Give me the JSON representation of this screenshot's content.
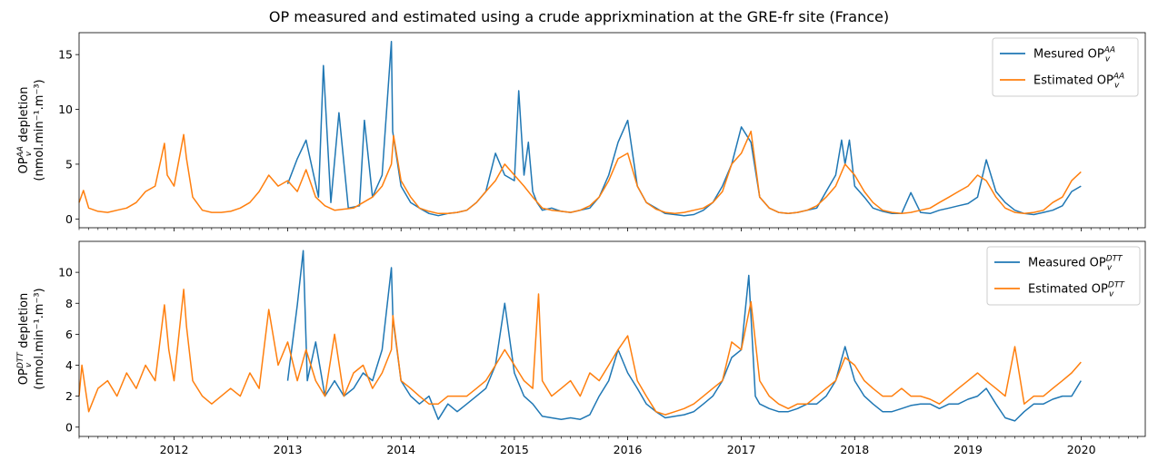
{
  "figure_title": "OP measured and estimated using a crude apprixmination at the GRE-fr site (France)",
  "colors": {
    "measured": "#1f77b4",
    "estimated": "#ff7f0e"
  },
  "chart_data": [
    {
      "type": "line",
      "ylabel_main": "OP",
      "ylabel_sup": "AA",
      "ylabel_sub": "v",
      "ylabel_rest": " depletion",
      "ylabel_unit": "(nmol.min⁻¹.m⁻³)",
      "xlim": [
        "2011-03-01",
        "2020-07-25"
      ],
      "ylim": [
        -0.8,
        17
      ],
      "yticks": [
        0,
        5,
        10,
        15
      ],
      "xticks": [
        "2012",
        "2013",
        "2014",
        "2015",
        "2016",
        "2017",
        "2018",
        "2019",
        "2020"
      ],
      "legend_position": "top-right",
      "series": [
        {
          "name": "Mesured OP",
          "name_sup": "AA",
          "name_sub": "v",
          "color": "#1f77b4",
          "x": [
            "2013-01-01",
            "2013-02-01",
            "2013-03-01",
            "2013-04-10",
            "2013-04-26",
            "2013-05-20",
            "2013-06-15",
            "2013-07-15",
            "2013-08-20",
            "2013-09-05",
            "2013-10-01",
            "2013-11-01",
            "2013-12-01",
            "2013-12-05",
            "2014-01-01",
            "2014-02-01",
            "2014-03-01",
            "2014-04-01",
            "2014-05-01",
            "2014-06-01",
            "2014-07-01",
            "2014-08-01",
            "2014-09-01",
            "2014-10-01",
            "2014-11-01",
            "2014-12-01",
            "2015-01-01",
            "2015-01-15",
            "2015-02-01",
            "2015-02-15",
            "2015-03-01",
            "2015-03-15",
            "2015-04-01",
            "2015-05-01",
            "2015-06-01",
            "2015-07-01",
            "2015-08-01",
            "2015-09-01",
            "2015-10-01",
            "2015-11-01",
            "2015-12-01",
            "2016-01-01",
            "2016-02-01",
            "2016-03-01",
            "2016-04-01",
            "2016-05-01",
            "2016-06-01",
            "2016-07-01",
            "2016-08-01",
            "2016-09-01",
            "2016-10-01",
            "2016-11-01",
            "2016-12-01",
            "2017-01-01",
            "2017-02-01",
            "2017-03-01",
            "2017-04-01",
            "2017-05-01",
            "2017-06-01",
            "2017-07-01",
            "2017-08-01",
            "2017-09-01",
            "2017-10-01",
            "2017-11-01",
            "2017-11-20",
            "2017-12-01",
            "2017-12-15",
            "2018-01-01",
            "2018-02-01",
            "2018-03-01",
            "2018-04-01",
            "2018-05-01",
            "2018-06-01",
            "2018-07-01",
            "2018-08-01",
            "2018-09-01",
            "2018-10-01",
            "2018-11-01",
            "2018-12-01",
            "2019-01-01",
            "2019-02-01",
            "2019-03-01",
            "2019-04-01",
            "2019-05-01",
            "2019-06-01",
            "2019-07-01",
            "2019-08-01",
            "2019-09-01",
            "2019-10-01",
            "2019-11-01",
            "2019-12-01",
            "2019-12-31"
          ],
          "y": [
            3.2,
            5.5,
            7.2,
            2.0,
            14.0,
            1.5,
            9.7,
            1.0,
            1.2,
            9.0,
            2.0,
            4.0,
            16.2,
            8.0,
            3.0,
            1.5,
            1.0,
            0.5,
            0.3,
            0.5,
            0.6,
            0.8,
            1.5,
            2.5,
            6.0,
            4.0,
            3.5,
            11.7,
            4.0,
            7.0,
            2.5,
            1.5,
            0.8,
            1.0,
            0.7,
            0.6,
            0.8,
            1.0,
            2.0,
            4.0,
            7.0,
            9.0,
            3.0,
            1.5,
            1.0,
            0.5,
            0.4,
            0.3,
            0.4,
            0.8,
            1.5,
            3.0,
            5.0,
            8.4,
            7.0,
            2.0,
            1.0,
            0.6,
            0.5,
            0.6,
            0.8,
            1.0,
            2.5,
            4.0,
            7.2,
            5.0,
            7.2,
            3.0,
            2.0,
            1.0,
            0.7,
            0.5,
            0.5,
            2.4,
            0.6,
            0.5,
            0.8,
            1.0,
            1.2,
            1.4,
            2.0,
            5.4,
            2.5,
            1.5,
            0.8,
            0.5,
            0.4,
            0.6,
            0.8,
            1.2,
            2.5,
            3.0
          ]
        },
        {
          "name": "Estimated OP",
          "name_sup": "AA",
          "name_sub": "v",
          "color": "#ff7f0e",
          "x": [
            "2011-03-01",
            "2011-03-15",
            "2011-04-01",
            "2011-05-01",
            "2011-06-01",
            "2011-07-01",
            "2011-08-01",
            "2011-09-01",
            "2011-10-01",
            "2011-11-01",
            "2011-12-01",
            "2011-12-10",
            "2012-01-01",
            "2012-02-01",
            "2012-02-10",
            "2012-03-01",
            "2012-04-01",
            "2012-05-01",
            "2012-06-01",
            "2012-07-01",
            "2012-08-01",
            "2012-09-01",
            "2012-10-01",
            "2012-11-01",
            "2012-12-01",
            "2013-01-01",
            "2013-02-01",
            "2013-03-01",
            "2013-04-01",
            "2013-05-01",
            "2013-06-01",
            "2013-07-01",
            "2013-08-01",
            "2013-09-01",
            "2013-10-01",
            "2013-11-01",
            "2013-12-01",
            "2013-12-08",
            "2014-01-01",
            "2014-02-01",
            "2014-03-01",
            "2014-04-01",
            "2014-05-01",
            "2014-06-01",
            "2014-07-01",
            "2014-08-01",
            "2014-09-01",
            "2014-10-01",
            "2014-11-01",
            "2014-12-01",
            "2015-01-01",
            "2015-02-01",
            "2015-03-01",
            "2015-04-01",
            "2015-05-01",
            "2015-06-01",
            "2015-07-01",
            "2015-08-01",
            "2015-09-01",
            "2015-10-01",
            "2015-11-01",
            "2015-12-01",
            "2016-01-01",
            "2016-02-01",
            "2016-03-01",
            "2016-04-01",
            "2016-05-01",
            "2016-06-01",
            "2016-07-01",
            "2016-08-01",
            "2016-09-01",
            "2016-10-01",
            "2016-11-01",
            "2016-12-01",
            "2017-01-01",
            "2017-02-01",
            "2017-03-01",
            "2017-04-01",
            "2017-05-01",
            "2017-06-01",
            "2017-07-01",
            "2017-08-01",
            "2017-09-01",
            "2017-10-01",
            "2017-11-01",
            "2017-12-01",
            "2018-01-01",
            "2018-02-01",
            "2018-03-01",
            "2018-04-01",
            "2018-05-01",
            "2018-06-01",
            "2018-07-01",
            "2018-08-01",
            "2018-09-01",
            "2018-10-01",
            "2018-11-01",
            "2018-12-01",
            "2019-01-01",
            "2019-02-01",
            "2019-03-01",
            "2019-04-01",
            "2019-05-01",
            "2019-06-01",
            "2019-07-01",
            "2019-08-01",
            "2019-09-01",
            "2019-10-01",
            "2019-11-01",
            "2019-12-01",
            "2019-12-31"
          ],
          "y": [
            1.5,
            2.6,
            1.0,
            0.7,
            0.6,
            0.8,
            1.0,
            1.5,
            2.5,
            3.0,
            6.9,
            4.0,
            3.0,
            7.7,
            5.5,
            2.0,
            0.8,
            0.6,
            0.6,
            0.7,
            1.0,
            1.5,
            2.5,
            4.0,
            3.0,
            3.5,
            2.5,
            4.5,
            2.0,
            1.2,
            0.8,
            0.9,
            1.0,
            1.5,
            2.0,
            3.0,
            5.0,
            7.6,
            3.5,
            2.0,
            1.0,
            0.7,
            0.5,
            0.5,
            0.6,
            0.8,
            1.5,
            2.5,
            3.5,
            5.0,
            4.0,
            3.0,
            2.0,
            1.0,
            0.8,
            0.7,
            0.6,
            0.8,
            1.2,
            2.0,
            3.5,
            5.5,
            6.0,
            3.0,
            1.5,
            0.9,
            0.6,
            0.5,
            0.6,
            0.8,
            1.0,
            1.5,
            2.5,
            5.0,
            6.0,
            8.0,
            2.0,
            1.0,
            0.6,
            0.5,
            0.6,
            0.8,
            1.2,
            2.0,
            3.0,
            5.0,
            4.0,
            2.5,
            1.5,
            0.8,
            0.6,
            0.5,
            0.6,
            0.8,
            1.0,
            1.5,
            2.0,
            2.5,
            3.0,
            4.0,
            3.5,
            2.0,
            1.0,
            0.6,
            0.5,
            0.6,
            0.8,
            1.5,
            2.0,
            3.5,
            4.3
          ]
        }
      ]
    },
    {
      "type": "line",
      "ylabel_main": "OP",
      "ylabel_sup": "DTT",
      "ylabel_sub": "v",
      "ylabel_rest": " depletion",
      "ylabel_unit": "(nmol.min⁻¹.m⁻³)",
      "xlim": [
        "2011-03-01",
        "2020-07-25"
      ],
      "ylim": [
        -0.6,
        12
      ],
      "yticks": [
        0,
        2,
        4,
        6,
        8,
        10
      ],
      "xticks": [
        "2012",
        "2013",
        "2014",
        "2015",
        "2016",
        "2017",
        "2018",
        "2019",
        "2020"
      ],
      "legend_position": "top-right",
      "series": [
        {
          "name": "Measured OP",
          "name_sup": "DTT",
          "name_sub": "v",
          "color": "#1f77b4",
          "x": [
            "2013-01-01",
            "2013-02-01",
            "2013-02-20",
            "2013-03-05",
            "2013-04-01",
            "2013-05-01",
            "2013-06-01",
            "2013-07-01",
            "2013-08-01",
            "2013-09-01",
            "2013-10-01",
            "2013-11-01",
            "2013-12-01",
            "2013-12-06",
            "2014-01-01",
            "2014-02-01",
            "2014-03-01",
            "2014-04-01",
            "2014-05-01",
            "2014-06-01",
            "2014-07-01",
            "2014-08-01",
            "2014-09-01",
            "2014-10-01",
            "2014-11-01",
            "2014-12-01",
            "2015-01-01",
            "2015-02-01",
            "2015-03-01",
            "2015-04-01",
            "2015-05-01",
            "2015-06-01",
            "2015-07-01",
            "2015-08-01",
            "2015-09-01",
            "2015-10-01",
            "2015-11-01",
            "2015-12-01",
            "2016-01-01",
            "2016-02-01",
            "2016-03-01",
            "2016-04-01",
            "2016-05-01",
            "2016-06-01",
            "2016-07-01",
            "2016-08-01",
            "2016-09-01",
            "2016-10-01",
            "2016-11-01",
            "2016-12-01",
            "2017-01-01",
            "2017-01-25",
            "2017-02-15",
            "2017-03-01",
            "2017-04-01",
            "2017-05-01",
            "2017-06-01",
            "2017-07-01",
            "2017-08-01",
            "2017-09-01",
            "2017-10-01",
            "2017-11-01",
            "2017-12-01",
            "2018-01-01",
            "2018-02-01",
            "2018-03-01",
            "2018-04-01",
            "2018-05-01",
            "2018-06-01",
            "2018-07-01",
            "2018-08-01",
            "2018-09-01",
            "2018-10-01",
            "2018-11-01",
            "2018-12-01",
            "2019-01-01",
            "2019-02-01",
            "2019-03-01",
            "2019-04-01",
            "2019-05-01",
            "2019-06-01",
            "2019-07-01",
            "2019-08-01",
            "2019-09-01",
            "2019-10-01",
            "2019-11-01",
            "2019-12-01",
            "2019-12-31"
          ],
          "y": [
            3.0,
            7.9,
            11.4,
            3.0,
            5.5,
            2.0,
            3.0,
            2.0,
            2.5,
            3.5,
            3.0,
            5.0,
            10.3,
            7.0,
            3.0,
            2.0,
            1.5,
            2.0,
            0.5,
            1.5,
            1.0,
            1.5,
            2.0,
            2.5,
            4.0,
            8.0,
            3.5,
            2.0,
            1.5,
            0.7,
            0.6,
            0.5,
            0.6,
            0.5,
            0.8,
            2.0,
            3.0,
            5.0,
            3.5,
            2.5,
            1.5,
            1.0,
            0.6,
            0.7,
            0.8,
            1.0,
            1.5,
            2.0,
            3.0,
            4.5,
            5.0,
            9.8,
            2.0,
            1.5,
            1.2,
            1.0,
            1.0,
            1.2,
            1.5,
            1.5,
            2.0,
            3.0,
            5.2,
            3.0,
            2.0,
            1.5,
            1.0,
            1.0,
            1.2,
            1.4,
            1.5,
            1.5,
            1.2,
            1.5,
            1.5,
            1.8,
            2.0,
            2.5,
            1.5,
            0.6,
            0.4,
            1.0,
            1.5,
            1.5,
            1.8,
            2.0,
            2.0,
            3.0
          ]
        },
        {
          "name": "Estimated OP",
          "name_sup": "DTT",
          "name_sub": "v",
          "color": "#ff7f0e",
          "x": [
            "2011-03-01",
            "2011-03-10",
            "2011-04-01",
            "2011-05-01",
            "2011-06-01",
            "2011-07-01",
            "2011-08-01",
            "2011-09-01",
            "2011-10-01",
            "2011-11-01",
            "2011-12-01",
            "2011-12-15",
            "2012-01-01",
            "2012-02-01",
            "2012-02-10",
            "2012-03-01",
            "2012-04-01",
            "2012-05-01",
            "2012-06-01",
            "2012-07-01",
            "2012-08-01",
            "2012-09-01",
            "2012-10-01",
            "2012-11-01",
            "2012-12-01",
            "2013-01-01",
            "2013-02-01",
            "2013-03-01",
            "2013-04-01",
            "2013-05-01",
            "2013-06-01",
            "2013-07-01",
            "2013-08-01",
            "2013-09-01",
            "2013-10-01",
            "2013-11-01",
            "2013-12-01",
            "2013-12-06",
            "2014-01-01",
            "2014-02-01",
            "2014-03-01",
            "2014-04-01",
            "2014-05-01",
            "2014-06-01",
            "2014-07-01",
            "2014-08-01",
            "2014-09-01",
            "2014-10-01",
            "2014-11-01",
            "2014-12-01",
            "2015-01-01",
            "2015-02-01",
            "2015-03-01",
            "2015-03-20",
            "2015-04-01",
            "2015-05-01",
            "2015-06-01",
            "2015-07-01",
            "2015-08-01",
            "2015-09-01",
            "2015-10-01",
            "2015-11-01",
            "2015-12-01",
            "2016-01-01",
            "2016-02-01",
            "2016-03-01",
            "2016-04-01",
            "2016-05-01",
            "2016-06-01",
            "2016-07-01",
            "2016-08-01",
            "2016-09-01",
            "2016-10-01",
            "2016-11-01",
            "2016-12-01",
            "2017-01-01",
            "2017-02-01",
            "2017-03-01",
            "2017-04-01",
            "2017-05-01",
            "2017-06-01",
            "2017-07-01",
            "2017-08-01",
            "2017-09-01",
            "2017-10-01",
            "2017-11-01",
            "2017-12-01",
            "2018-01-01",
            "2018-02-01",
            "2018-03-01",
            "2018-04-01",
            "2018-05-01",
            "2018-06-01",
            "2018-07-01",
            "2018-08-01",
            "2018-09-01",
            "2018-10-01",
            "2018-11-01",
            "2018-12-01",
            "2019-01-01",
            "2019-02-01",
            "2019-03-01",
            "2019-04-01",
            "2019-05-01",
            "2019-06-01",
            "2019-07-01",
            "2019-08-01",
            "2019-09-01",
            "2019-10-01",
            "2019-11-01",
            "2019-12-01",
            "2019-12-31"
          ],
          "y": [
            2.0,
            4.0,
            1.0,
            2.5,
            3.0,
            2.0,
            3.5,
            2.5,
            4.0,
            3.0,
            7.9,
            5.0,
            3.0,
            8.9,
            6.5,
            3.0,
            2.0,
            1.5,
            2.0,
            2.5,
            2.0,
            3.5,
            2.5,
            7.6,
            4.0,
            5.5,
            3.0,
            5.0,
            3.0,
            2.0,
            6.0,
            2.0,
            3.5,
            4.0,
            2.5,
            3.5,
            5.0,
            7.2,
            3.0,
            2.5,
            2.0,
            1.5,
            1.5,
            2.0,
            2.0,
            2.0,
            2.5,
            3.0,
            4.0,
            5.0,
            4.0,
            3.0,
            2.5,
            8.6,
            3.0,
            2.0,
            2.5,
            3.0,
            2.0,
            3.5,
            3.0,
            4.0,
            5.0,
            5.9,
            3.0,
            2.0,
            1.0,
            0.8,
            1.0,
            1.2,
            1.5,
            2.0,
            2.5,
            3.0,
            5.5,
            5.0,
            8.1,
            3.0,
            2.0,
            1.5,
            1.2,
            1.5,
            1.5,
            2.0,
            2.5,
            3.0,
            4.5,
            4.0,
            3.0,
            2.5,
            2.0,
            2.0,
            2.5,
            2.0,
            2.0,
            1.8,
            1.5,
            2.0,
            2.5,
            3.0,
            3.5,
            3.0,
            2.5,
            2.0,
            5.2,
            1.5,
            2.0,
            2.0,
            2.5,
            3.0,
            3.5,
            4.2
          ]
        }
      ]
    }
  ]
}
